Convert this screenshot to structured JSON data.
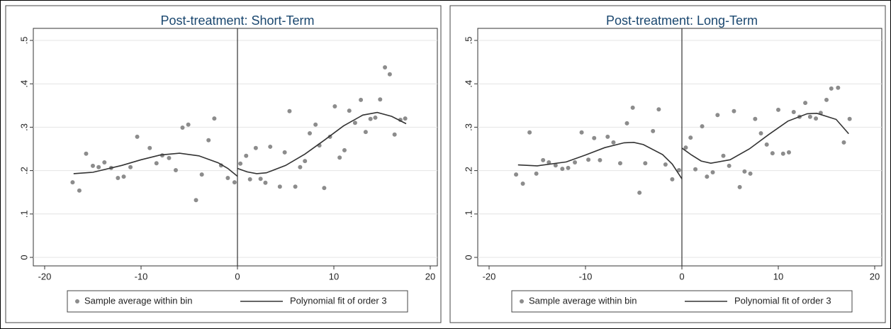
{
  "chart_data": [
    {
      "type": "scatter",
      "title": "Post-treatment: Short-Term",
      "xlim": [
        -20,
        20
      ],
      "xticks": [
        -20,
        -10,
        0,
        10,
        20
      ],
      "ylim": [
        0,
        0.5
      ],
      "yticks": [
        0,
        {
          "value": 0.1,
          "label": ".1"
        },
        {
          "value": 0.2,
          "label": ".2"
        },
        {
          "value": 0.3,
          "label": ".3"
        },
        {
          "value": 0.4,
          "label": ".4"
        },
        {
          "value": 0.5,
          "label": ".5"
        }
      ],
      "grid": true,
      "vline": 0,
      "legend": "bottom",
      "series": [
        {
          "name": "Sample average within bin",
          "color": "#8c8c8c",
          "kind": "points",
          "x": [
            -17.1,
            -16.4,
            -15.7,
            -15.0,
            -14.4,
            -13.8,
            -13.1,
            -12.4,
            -11.8,
            -11.1,
            -10.4,
            -9.1,
            -8.4,
            -7.8,
            -7.1,
            -6.4,
            -5.7,
            -5.1,
            -4.3,
            -3.7,
            -3.0,
            -2.4,
            -1.7,
            -1.0,
            -0.3,
            0.3,
            0.9,
            1.3,
            1.9,
            2.4,
            2.9,
            3.4,
            4.4,
            4.9,
            5.4,
            6.0,
            6.5,
            7.0,
            7.5,
            8.1,
            8.5,
            9.0,
            9.6,
            10.1,
            10.6,
            11.1,
            11.6,
            12.2,
            12.8,
            13.3,
            13.8,
            14.3,
            14.8,
            15.3,
            15.8,
            16.3,
            16.9,
            17.4
          ],
          "values": [
            0.173,
            0.154,
            0.239,
            0.211,
            0.208,
            0.219,
            0.206,
            0.183,
            0.186,
            0.208,
            0.278,
            0.252,
            0.217,
            0.235,
            0.229,
            0.201,
            0.299,
            0.306,
            0.132,
            0.191,
            0.27,
            0.32,
            0.212,
            0.183,
            0.173,
            0.216,
            0.234,
            0.18,
            0.252,
            0.181,
            0.172,
            0.255,
            0.163,
            0.242,
            0.337,
            0.163,
            0.208,
            0.222,
            0.286,
            0.306,
            0.258,
            0.16,
            0.278,
            0.348,
            0.23,
            0.247,
            0.338,
            0.31,
            0.363,
            0.289,
            0.319,
            0.322,
            0.364,
            0.438,
            0.422,
            0.283,
            0.317,
            0.32
          ]
        },
        {
          "name": "Polynomial fit of order 3",
          "color": "#333333",
          "kind": "line",
          "x": [
            -17,
            -15,
            -12,
            -10,
            -8,
            -6,
            -4,
            -2,
            -1,
            0,
            null,
            0,
            1,
            2,
            3,
            5,
            7,
            9,
            11,
            13,
            14.5,
            16,
            17.5
          ],
          "values": [
            0.193,
            0.196,
            0.212,
            0.225,
            0.236,
            0.24,
            0.234,
            0.218,
            0.205,
            0.187,
            null,
            0.205,
            0.197,
            0.193,
            0.195,
            0.212,
            0.238,
            0.27,
            0.303,
            0.328,
            0.334,
            0.325,
            0.308
          ]
        }
      ]
    },
    {
      "type": "scatter",
      "title": "Post-treatment: Long-Term",
      "xlim": [
        -20,
        20
      ],
      "xticks": [
        -20,
        -10,
        0,
        10,
        20
      ],
      "ylim": [
        0,
        0.5
      ],
      "yticks": [
        0,
        {
          "value": 0.1,
          "label": ".1"
        },
        {
          "value": 0.2,
          "label": ".2"
        },
        {
          "value": 0.3,
          "label": ".3"
        },
        {
          "value": 0.4,
          "label": ".4"
        },
        {
          "value": 0.5,
          "label": ".5"
        }
      ],
      "grid": true,
      "vline": 0,
      "legend": "bottom",
      "series": [
        {
          "name": "Sample average within bin",
          "color": "#8c8c8c",
          "kind": "points",
          "x": [
            -17.2,
            -16.5,
            -15.8,
            -15.1,
            -14.4,
            -13.8,
            -13.1,
            -12.4,
            -11.8,
            -11.1,
            -10.4,
            -9.7,
            -9.1,
            -8.5,
            -7.7,
            -7.1,
            -6.4,
            -5.7,
            -5.1,
            -4.4,
            -3.8,
            -3.0,
            -2.4,
            -1.7,
            -1.0,
            -0.3,
            0.4,
            0.9,
            1.4,
            2.1,
            2.6,
            3.2,
            3.7,
            4.3,
            4.9,
            5.4,
            6.0,
            6.5,
            7.1,
            7.6,
            8.2,
            8.8,
            9.4,
            10.0,
            10.5,
            11.1,
            11.6,
            12.2,
            12.8,
            13.3,
            13.9,
            14.4,
            15.0,
            15.5,
            16.2,
            16.8,
            17.4
          ],
          "values": [
            0.191,
            0.17,
            0.288,
            0.193,
            0.224,
            0.219,
            0.212,
            0.204,
            0.206,
            0.219,
            0.288,
            0.225,
            0.275,
            0.224,
            0.278,
            0.265,
            0.217,
            0.309,
            0.345,
            0.149,
            0.217,
            0.291,
            0.341,
            0.214,
            0.18,
            0.201,
            0.253,
            0.276,
            0.203,
            0.302,
            0.186,
            0.196,
            0.328,
            0.234,
            0.211,
            0.337,
            0.162,
            0.198,
            0.193,
            0.319,
            0.286,
            0.26,
            0.24,
            0.34,
            0.239,
            0.242,
            0.335,
            0.324,
            0.356,
            0.324,
            0.32,
            0.333,
            0.363,
            0.389,
            0.391,
            0.265,
            0.319
          ]
        },
        {
          "name": "Polynomial fit of order 3",
          "color": "#333333",
          "kind": "line",
          "x": [
            -17,
            -15,
            -12,
            -10,
            -8,
            -6,
            -5,
            -4,
            -2,
            -1,
            0,
            null,
            0,
            1,
            2,
            3,
            5,
            7,
            9,
            11,
            13,
            14,
            16,
            17.3
          ],
          "values": [
            0.213,
            0.211,
            0.22,
            0.236,
            0.253,
            0.264,
            0.265,
            0.26,
            0.237,
            0.215,
            0.181,
            null,
            0.252,
            0.236,
            0.222,
            0.217,
            0.225,
            0.25,
            0.283,
            0.314,
            0.331,
            0.332,
            0.318,
            0.285
          ]
        }
      ]
    }
  ]
}
